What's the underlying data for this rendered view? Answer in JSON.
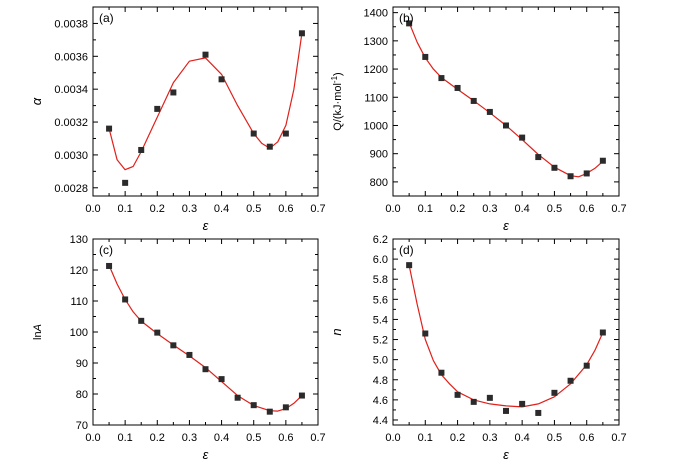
{
  "chart_data": [
    {
      "type": "scatter",
      "panel_label": "(a)",
      "xlabel": "ε",
      "ylabel": "α",
      "xlim": [
        0,
        0.7
      ],
      "ylim": [
        0.00275,
        0.0039
      ],
      "xticks": [
        "0.0",
        "0.1",
        "0.2",
        "0.3",
        "0.4",
        "0.5",
        "0.6",
        "0.7"
      ],
      "yticks": [
        "0.0028",
        "0.0030",
        "0.0032",
        "0.0034",
        "0.0036",
        "0.0038"
      ],
      "x": [
        0.05,
        0.1,
        0.15,
        0.2,
        0.25,
        0.35,
        0.4,
        0.5,
        0.55,
        0.6,
        0.65
      ],
      "y": [
        0.00316,
        0.00283,
        0.00303,
        0.00328,
        0.00338,
        0.00361,
        0.00346,
        0.00313,
        0.00305,
        0.00313,
        0.00374
      ],
      "fit": [
        [
          0.05,
          0.00316
        ],
        [
          0.075,
          0.00297
        ],
        [
          0.1,
          0.00291
        ],
        [
          0.125,
          0.00293
        ],
        [
          0.15,
          0.00302
        ],
        [
          0.2,
          0.00323
        ],
        [
          0.25,
          0.00344
        ],
        [
          0.3,
          0.00357
        ],
        [
          0.35,
          0.00359
        ],
        [
          0.4,
          0.00349
        ],
        [
          0.45,
          0.0033
        ],
        [
          0.5,
          0.00313
        ],
        [
          0.525,
          0.00307
        ],
        [
          0.55,
          0.00304
        ],
        [
          0.575,
          0.00308
        ],
        [
          0.6,
          0.00318
        ],
        [
          0.625,
          0.0034
        ],
        [
          0.65,
          0.00374
        ]
      ],
      "grid": false,
      "marker_color": "#2b2b2b",
      "line_color": "#e0201a"
    },
    {
      "type": "scatter",
      "panel_label": "(b)",
      "xlabel": "ε",
      "ylabel": "Q/(kJ·mol",
      "ylabel_sup": "-1",
      "ylabel_end": ")",
      "xlim": [
        0,
        0.7
      ],
      "ylim": [
        750,
        1420
      ],
      "xticks": [
        "0.0",
        "0.1",
        "0.2",
        "0.3",
        "0.4",
        "0.5",
        "0.6",
        "0.7"
      ],
      "yticks": [
        "800",
        "900",
        "1000",
        "1100",
        "1200",
        "1300",
        "1400"
      ],
      "x": [
        0.05,
        0.1,
        0.15,
        0.2,
        0.25,
        0.3,
        0.35,
        0.4,
        0.45,
        0.5,
        0.55,
        0.6,
        0.65
      ],
      "y": [
        1362,
        1243,
        1168,
        1133,
        1087,
        1048,
        1000,
        957,
        888,
        850,
        820,
        830,
        875
      ],
      "fit": [
        [
          0.05,
          1365
        ],
        [
          0.075,
          1295
        ],
        [
          0.1,
          1240
        ],
        [
          0.125,
          1200
        ],
        [
          0.15,
          1170
        ],
        [
          0.2,
          1128
        ],
        [
          0.25,
          1088
        ],
        [
          0.3,
          1045
        ],
        [
          0.35,
          1000
        ],
        [
          0.4,
          950
        ],
        [
          0.45,
          897
        ],
        [
          0.5,
          852
        ],
        [
          0.55,
          822
        ],
        [
          0.575,
          818
        ],
        [
          0.6,
          830
        ],
        [
          0.625,
          848
        ],
        [
          0.65,
          873
        ]
      ],
      "grid": false,
      "marker_color": "#2b2b2b",
      "line_color": "#e0201a"
    },
    {
      "type": "scatter",
      "panel_label": "(c)",
      "xlabel": "ε",
      "ylabel": "lnA",
      "xlim": [
        0,
        0.7
      ],
      "ylim": [
        70,
        130
      ],
      "xticks": [
        "0.0",
        "0.1",
        "0.2",
        "0.3",
        "0.4",
        "0.5",
        "0.6",
        "0.7"
      ],
      "yticks": [
        "70",
        "80",
        "90",
        "100",
        "110",
        "120",
        "130"
      ],
      "x": [
        0.05,
        0.1,
        0.15,
        0.2,
        0.25,
        0.3,
        0.35,
        0.4,
        0.45,
        0.5,
        0.55,
        0.6,
        0.65
      ],
      "y": [
        121.3,
        110.5,
        103.6,
        99.8,
        95.7,
        92.6,
        88.0,
        84.8,
        78.8,
        76.4,
        74.3,
        75.7,
        79.5
      ],
      "fit": [
        [
          0.05,
          121.5
        ],
        [
          0.075,
          115.5
        ],
        [
          0.1,
          110.5
        ],
        [
          0.125,
          106.5
        ],
        [
          0.15,
          103.5
        ],
        [
          0.2,
          99.5
        ],
        [
          0.25,
          95.8
        ],
        [
          0.3,
          92.3
        ],
        [
          0.35,
          88.5
        ],
        [
          0.4,
          84.0
        ],
        [
          0.45,
          79.5
        ],
        [
          0.5,
          76.3
        ],
        [
          0.55,
          74.6
        ],
        [
          0.575,
          74.5
        ],
        [
          0.6,
          75.3
        ],
        [
          0.625,
          77.0
        ],
        [
          0.65,
          79.5
        ]
      ],
      "grid": false,
      "marker_color": "#2b2b2b",
      "line_color": "#e0201a"
    },
    {
      "type": "scatter",
      "panel_label": "(d)",
      "xlabel": "ε",
      "ylabel": "n",
      "xlim": [
        0,
        0.7
      ],
      "ylim": [
        4.35,
        6.2
      ],
      "xticks": [
        "0.0",
        "0.1",
        "0.2",
        "0.3",
        "0.4",
        "0.5",
        "0.6",
        "0.7"
      ],
      "yticks": [
        "4.4",
        "4.6",
        "4.8",
        "5.0",
        "5.2",
        "5.4",
        "5.6",
        "5.8",
        "6.0",
        "6.2"
      ],
      "x": [
        0.05,
        0.1,
        0.15,
        0.2,
        0.25,
        0.3,
        0.35,
        0.4,
        0.45,
        0.5,
        0.55,
        0.6,
        0.65
      ],
      "y": [
        5.94,
        5.26,
        4.87,
        4.65,
        4.58,
        4.62,
        4.49,
        4.56,
        4.47,
        4.67,
        4.79,
        4.94,
        5.27
      ],
      "fit": [
        [
          0.05,
          5.94
        ],
        [
          0.075,
          5.55
        ],
        [
          0.1,
          5.2
        ],
        [
          0.125,
          4.99
        ],
        [
          0.15,
          4.85
        ],
        [
          0.175,
          4.76
        ],
        [
          0.2,
          4.68
        ],
        [
          0.25,
          4.6
        ],
        [
          0.3,
          4.56
        ],
        [
          0.35,
          4.54
        ],
        [
          0.4,
          4.53
        ],
        [
          0.45,
          4.56
        ],
        [
          0.5,
          4.63
        ],
        [
          0.55,
          4.76
        ],
        [
          0.6,
          4.95
        ],
        [
          0.625,
          5.09
        ],
        [
          0.65,
          5.27
        ]
      ],
      "grid": false,
      "marker_color": "#2b2b2b",
      "line_color": "#e0201a"
    }
  ]
}
